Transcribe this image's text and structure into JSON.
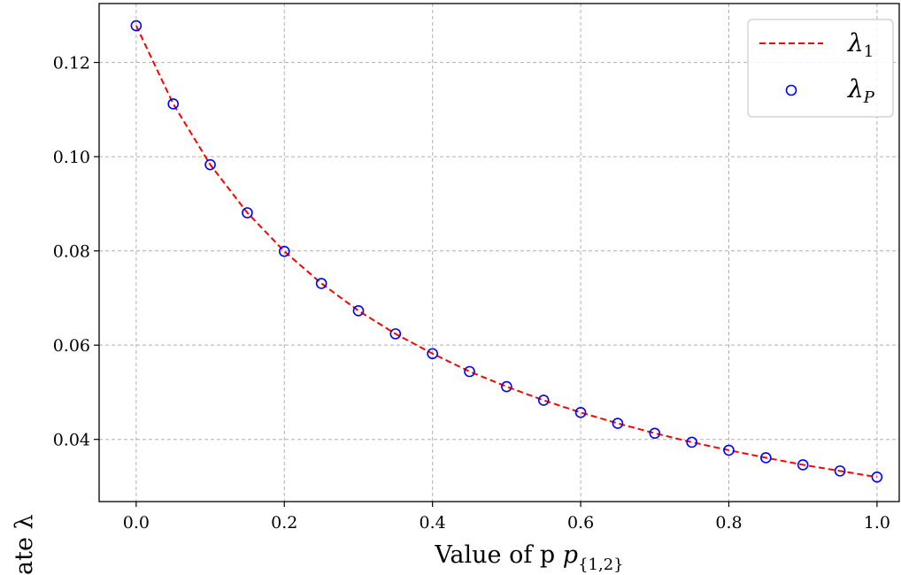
{
  "chart_data": {
    "type": "line",
    "xlabel": "Value of p",
    "xlabel_subscript": "{1,2}",
    "ylabel_visible_fragment": "ate λ",
    "xlim": [
      -0.05,
      1.03
    ],
    "ylim": [
      0.0268,
      0.1325
    ],
    "x_ticks": [
      0.0,
      0.2,
      0.4,
      0.6,
      0.8,
      1.0
    ],
    "x_tick_labels": [
      "0.0",
      "0.2",
      "0.4",
      "0.6",
      "0.8",
      "1.0"
    ],
    "y_ticks": [
      0.04,
      0.06,
      0.08,
      0.1,
      0.12
    ],
    "y_tick_labels": [
      "0.04",
      "0.06",
      "0.08",
      "0.10",
      "0.12"
    ],
    "grid": true,
    "legend_position": "top-right",
    "x": [
      0.0,
      0.05,
      0.1,
      0.15,
      0.2,
      0.25,
      0.3,
      0.35,
      0.4,
      0.45,
      0.5,
      0.55,
      0.6,
      0.65,
      0.7,
      0.75,
      0.8,
      0.85,
      0.9,
      0.95,
      1.0
    ],
    "series": [
      {
        "name": "λ",
        "name_subscript": "1",
        "style": "dashed-line",
        "color": "#ff0000",
        "values": [
          0.1278,
          0.1112,
          0.0983,
          0.0881,
          0.0799,
          0.0731,
          0.0673,
          0.0624,
          0.0582,
          0.0544,
          0.0512,
          0.0483,
          0.0457,
          0.0434,
          0.0413,
          0.0394,
          0.0377,
          0.0361,
          0.0346,
          0.0333,
          0.032
        ]
      },
      {
        "name": "λ",
        "name_subscript": "P",
        "style": "hollow-circle-markers",
        "color": "#0000ff",
        "values": [
          0.1278,
          0.1112,
          0.0983,
          0.0881,
          0.0799,
          0.0731,
          0.0673,
          0.0624,
          0.0582,
          0.0544,
          0.0512,
          0.0483,
          0.0457,
          0.0434,
          0.0413,
          0.0394,
          0.0377,
          0.0361,
          0.0346,
          0.0333,
          0.032
        ]
      }
    ]
  }
}
